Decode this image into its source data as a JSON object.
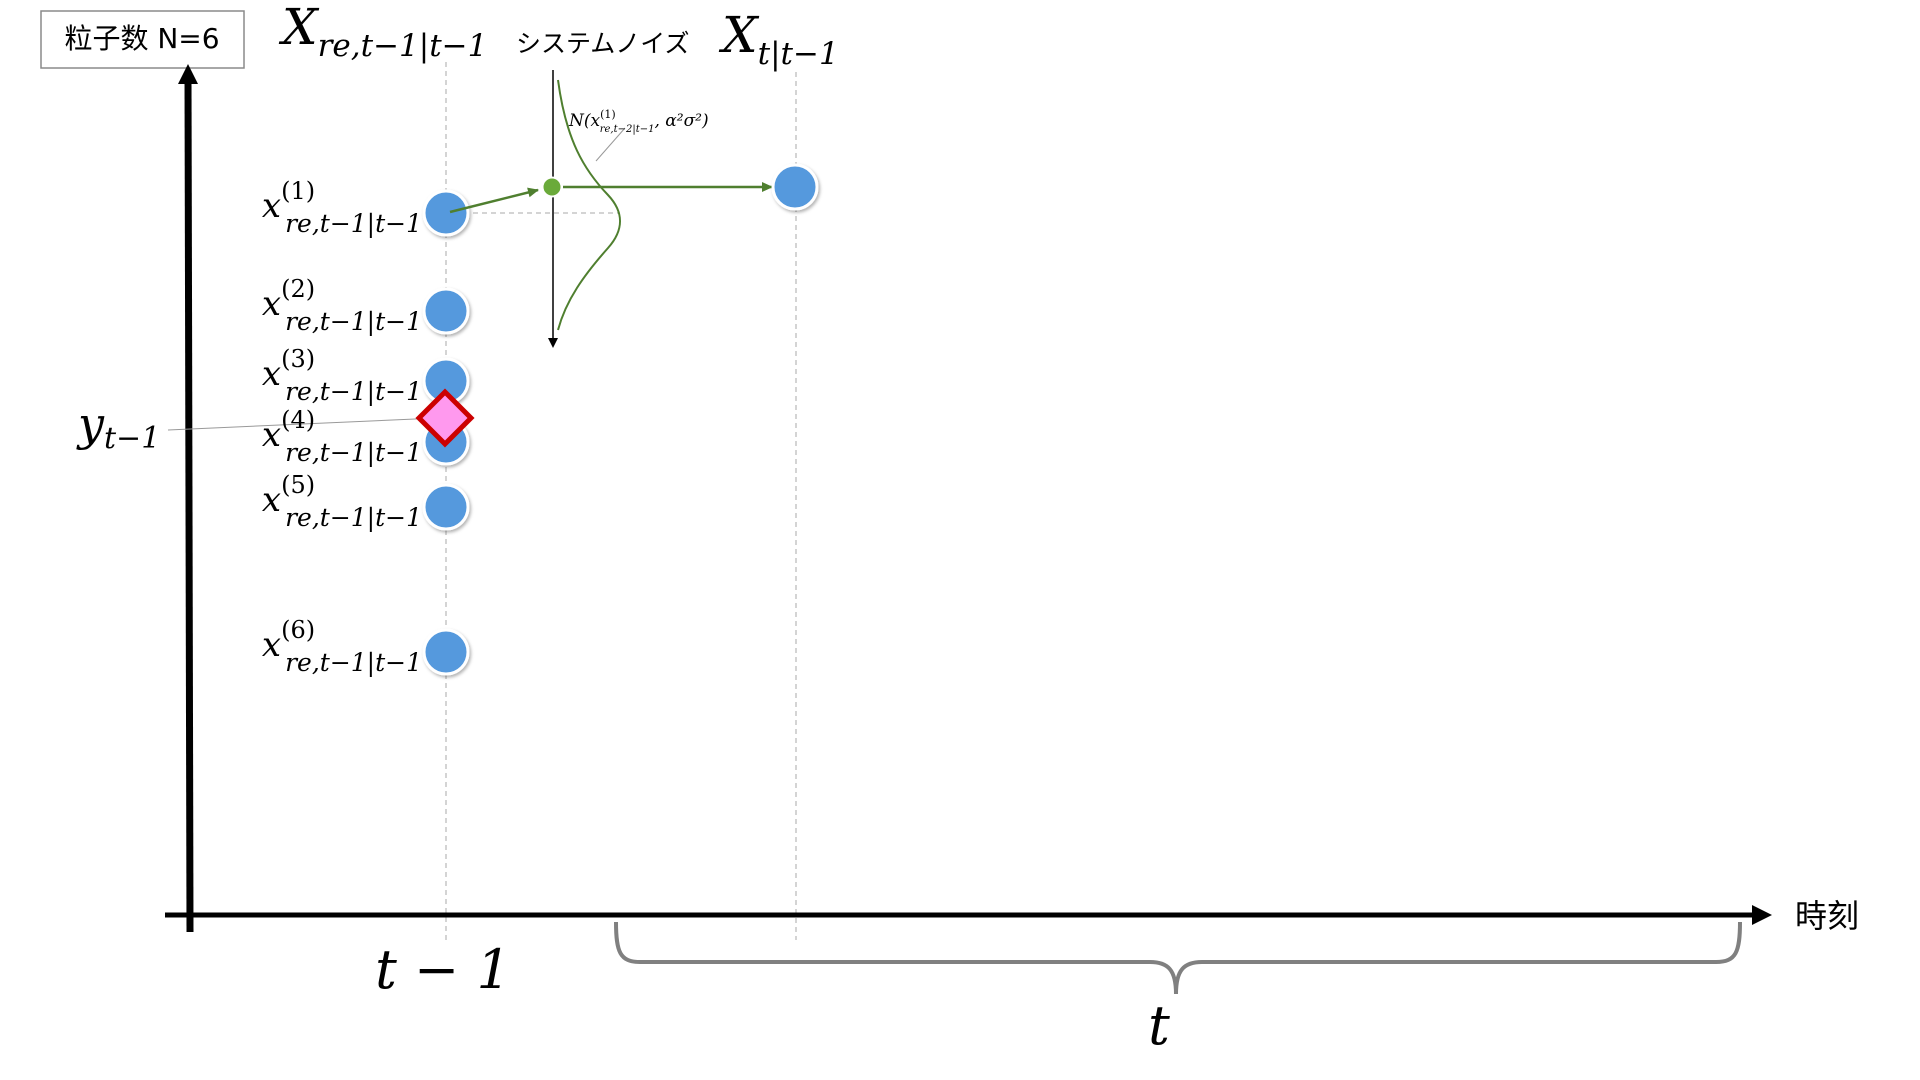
{
  "particle_count_label": "粒子数 N=6",
  "time_axis_label": "時刻",
  "system_noise_label": "システムノイズ",
  "header_left": {
    "base": "X",
    "sub": "re,t−1|t−1"
  },
  "header_right": {
    "base": "X",
    "sub": "t|t−1"
  },
  "observation_label": {
    "base": "y",
    "sub": "t−1"
  },
  "time_tick_prev": "t − 1",
  "time_brace_label": "t",
  "noise_formula": {
    "prefix": "N(",
    "var_base": "x",
    "var_sup": "(1)",
    "var_sub": "re,t−2|t−1",
    "suffix": ", α²σ²)"
  },
  "particles": [
    {
      "index": "1",
      "label_base": "x",
      "label_sup": "(1)",
      "label_sub": "re,t−1|t−1"
    },
    {
      "index": "2",
      "label_base": "x",
      "label_sup": "(2)",
      "label_sub": "re,t−1|t−1"
    },
    {
      "index": "3",
      "label_base": "x",
      "label_sup": "(3)",
      "label_sub": "re,t−1|t−1"
    },
    {
      "index": "4",
      "label_base": "x",
      "label_sup": "(4)",
      "label_sub": "re,t−1|t−1"
    },
    {
      "index": "5",
      "label_base": "x",
      "label_sup": "(5)",
      "label_sub": "re,t−1|t−1"
    },
    {
      "index": "6",
      "label_base": "x",
      "label_sup": "(6)",
      "label_sub": "re,t−1|t−1"
    }
  ],
  "colors": {
    "particle": "#5599dd",
    "particle_edge": "#ffffff",
    "noise_green": "#4f7f2f",
    "noise_dot": "#6aaa3a",
    "observation_fill": "#ff99ee",
    "observation_edge": "#cc0000",
    "axis": "#000000",
    "guide": "#aaaaaa",
    "brace": "#808080"
  }
}
